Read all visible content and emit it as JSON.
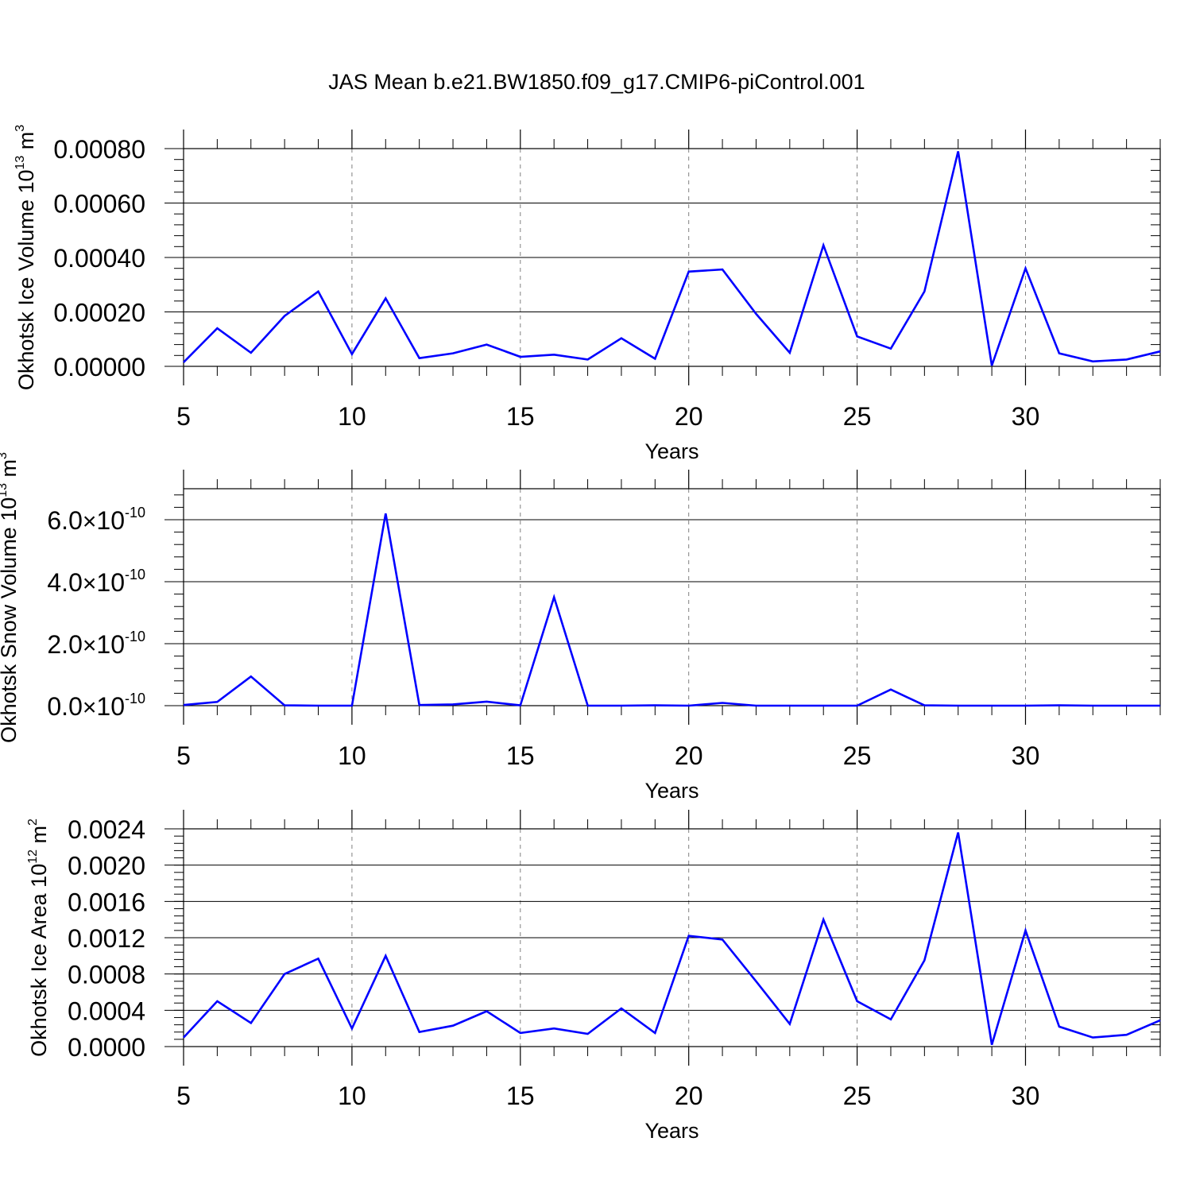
{
  "title": "JAS Mean b.e21.BW1850.f09_g17.CMIP6-piControl.001",
  "colors": {
    "line": "#0000ff",
    "axis": "#000000",
    "grid": "#808080",
    "background": "#ffffff"
  },
  "chart_data": [
    {
      "type": "line",
      "ylabel": {
        "main": "Okhotsk Ice Volume 10",
        "exp": "13",
        "unit": " m",
        "unit_exp": "3"
      },
      "xlabel": "Years",
      "xlim": [
        5,
        34
      ],
      "ylim": [
        0,
        0.0008
      ],
      "xticks": [
        5,
        10,
        15,
        20,
        25,
        30
      ],
      "xtick_labels": [
        "5",
        "10",
        "15",
        "20",
        "25",
        "30"
      ],
      "yticks": [
        0,
        0.0002,
        0.0004,
        0.0006,
        0.0008
      ],
      "ytick_labels": [
        "0.00000",
        "0.00020",
        "0.00040",
        "0.00060",
        "0.00080"
      ],
      "grid": "x-dashed",
      "x": [
        5,
        6,
        7,
        8,
        9,
        10,
        11,
        12,
        13,
        14,
        15,
        16,
        17,
        18,
        19,
        20,
        21,
        22,
        23,
        24,
        25,
        26,
        27,
        28,
        29,
        30,
        31,
        32,
        33,
        34
      ],
      "values": [
        1.5e-05,
        0.00014,
        5e-05,
        0.000185,
        0.000275,
        4.5e-05,
        0.00025,
        3e-05,
        4.8e-05,
        8e-05,
        3.5e-05,
        4.3e-05,
        2.5e-05,
        0.000103,
        2.8e-05,
        0.000348,
        0.000356,
        0.000193,
        5e-05,
        0.000445,
        0.00011,
        6.5e-05,
        0.000275,
        0.00079,
        3e-06,
        0.00036,
        4.8e-05,
        1.8e-05,
        2.5e-05,
        5.5e-05
      ]
    },
    {
      "type": "line",
      "ylabel": {
        "main": "Okhotsk Snow Volume 10",
        "exp": "13",
        "unit": " m",
        "unit_exp": "3"
      },
      "xlabel": "Years",
      "xlim": [
        5,
        34
      ],
      "ylim": [
        0,
        7e-10
      ],
      "xticks": [
        5,
        10,
        15,
        20,
        25,
        30
      ],
      "xtick_labels": [
        "5",
        "10",
        "15",
        "20",
        "25",
        "30"
      ],
      "yticks": [
        0,
        2e-10,
        4e-10,
        6e-10
      ],
      "ytick_labels": [
        {
          "m": "0.0",
          "x": "×",
          "b": "10",
          "e": "-10"
        },
        {
          "m": "2.0",
          "x": "×",
          "b": "10",
          "e": "-10"
        },
        {
          "m": "4.0",
          "x": "×",
          "b": "10",
          "e": "-10"
        },
        {
          "m": "6.0",
          "x": "×",
          "b": "10",
          "e": "-10"
        }
      ],
      "grid": "x-dashed",
      "x": [
        5,
        6,
        7,
        8,
        9,
        10,
        11,
        12,
        13,
        14,
        15,
        16,
        17,
        18,
        19,
        20,
        21,
        22,
        23,
        24,
        25,
        26,
        27,
        28,
        29,
        30,
        31,
        32,
        33,
        34
      ],
      "values": [
        2e-12,
        1.2e-11,
        9.4e-11,
        1e-12,
        0,
        0,
        6.2e-10,
        2e-12,
        4e-12,
        1.3e-11,
        1e-12,
        3.5e-10,
        0,
        0,
        1e-12,
        0,
        9e-12,
        0,
        0,
        0,
        0,
        5.2e-11,
        1e-12,
        0,
        0,
        0,
        1e-12,
        0,
        0,
        0
      ]
    },
    {
      "type": "line",
      "ylabel": {
        "main": "Okhotsk Ice Area 10",
        "exp": "12",
        "unit": " m",
        "unit_exp": "2"
      },
      "xlabel": "Years",
      "xlim": [
        5,
        34
      ],
      "ylim": [
        0,
        0.0024
      ],
      "xticks": [
        5,
        10,
        15,
        20,
        25,
        30
      ],
      "xtick_labels": [
        "5",
        "10",
        "15",
        "20",
        "25",
        "30"
      ],
      "yticks": [
        0,
        0.0004,
        0.0008,
        0.0012,
        0.0016,
        0.002,
        0.0024
      ],
      "ytick_labels": [
        "0.0000",
        "0.0004",
        "0.0008",
        "0.0012",
        "0.0016",
        "0.0020",
        "0.0024"
      ],
      "grid": "x-dashed",
      "x": [
        5,
        6,
        7,
        8,
        9,
        10,
        11,
        12,
        13,
        14,
        15,
        16,
        17,
        18,
        19,
        20,
        21,
        22,
        23,
        24,
        25,
        26,
        27,
        28,
        29,
        30,
        31,
        32,
        33,
        34
      ],
      "values": [
        0.0001,
        0.0005,
        0.00026,
        0.0008,
        0.00097,
        0.0002,
        0.001,
        0.00016,
        0.00023,
        0.00039,
        0.00015,
        0.0002,
        0.00014,
        0.00042,
        0.00015,
        0.00122,
        0.00118,
        0.00072,
        0.00025,
        0.0014,
        0.0005,
        0.0003,
        0.00095,
        0.00236,
        2e-05,
        0.00128,
        0.00022,
        0.0001,
        0.00013,
        0.00029
      ]
    }
  ]
}
